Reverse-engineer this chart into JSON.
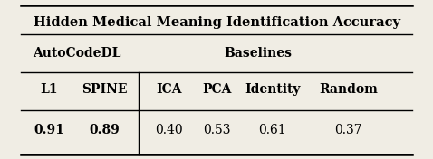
{
  "title": "Hidden Medical Meaning Identification Accuracy",
  "autocode_label": "AutoCodeDL",
  "baselines_label": "Baselines",
  "col_headers": [
    "L1",
    "SPINE",
    "ICA",
    "PCA",
    "Identity",
    "Random"
  ],
  "values": [
    "0.91",
    "0.89",
    "0.40",
    "0.53",
    "0.61",
    "0.37"
  ],
  "values_bold": [
    true,
    true,
    false,
    false,
    false,
    false
  ],
  "background_color": "#f0ede4",
  "title_fontsize": 10.5,
  "header_fontsize": 10,
  "value_fontsize": 10
}
